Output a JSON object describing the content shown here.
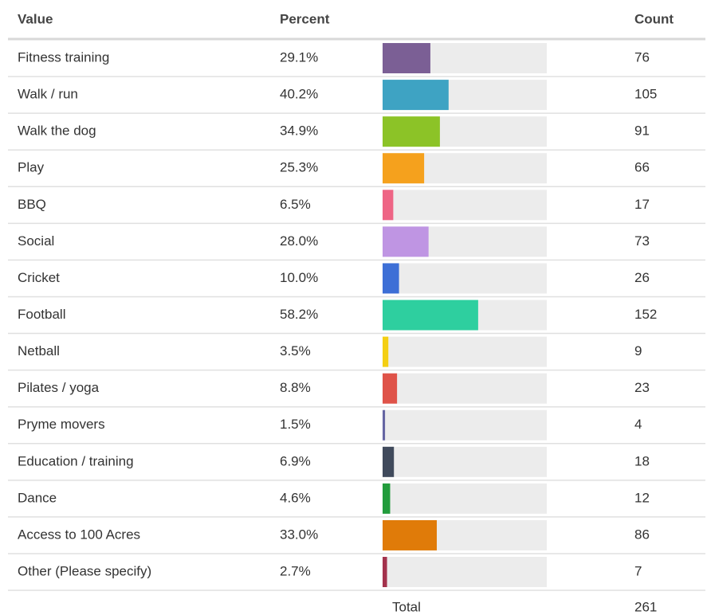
{
  "table": {
    "header": {
      "value": "Value",
      "percent": "Percent",
      "count": "Count"
    },
    "rows": [
      {
        "value": "Fitness training",
        "percent": {
          "value": 29.1,
          "label": "29.1%"
        },
        "count": 76,
        "color": "#7b5f95"
      },
      {
        "value": "Walk / run",
        "percent": {
          "value": 40.2,
          "label": "40.2%"
        },
        "count": 105,
        "color": "#3ea3c3"
      },
      {
        "value": "Walk the dog",
        "percent": {
          "value": 34.9,
          "label": "34.9%"
        },
        "count": 91,
        "color": "#8cc327"
      },
      {
        "value": "Play",
        "percent": {
          "value": 25.3,
          "label": "25.3%"
        },
        "count": 66,
        "color": "#f5a11d"
      },
      {
        "value": "BBQ",
        "percent": {
          "value": 6.5,
          "label": "6.5%"
        },
        "count": 17,
        "color": "#ee6585"
      },
      {
        "value": "Social",
        "percent": {
          "value": 28.0,
          "label": "28.0%"
        },
        "count": 73,
        "color": "#bf95e3"
      },
      {
        "value": "Cricket",
        "percent": {
          "value": 10.0,
          "label": "10.0%"
        },
        "count": 26,
        "color": "#3d6fd6"
      },
      {
        "value": "Football",
        "percent": {
          "value": 58.2,
          "label": "58.2%"
        },
        "count": 152,
        "color": "#2ecf9f"
      },
      {
        "value": "Netball",
        "percent": {
          "value": 3.5,
          "label": "3.5%"
        },
        "count": 9,
        "color": "#f4cf13"
      },
      {
        "value": "Pilates / yoga",
        "percent": {
          "value": 8.8,
          "label": "8.8%"
        },
        "count": 23,
        "color": "#df5349"
      },
      {
        "value": "Pryme movers",
        "percent": {
          "value": 1.5,
          "label": "1.5%"
        },
        "count": 4,
        "color": "#6666a3"
      },
      {
        "value": "Education / training",
        "percent": {
          "value": 6.9,
          "label": "6.9%"
        },
        "count": 18,
        "color": "#404a5c"
      },
      {
        "value": "Dance",
        "percent": {
          "value": 4.6,
          "label": "4.6%"
        },
        "count": 12,
        "color": "#229c3c"
      },
      {
        "value": "Access to 100 Acres",
        "percent": {
          "value": 33.0,
          "label": "33.0%"
        },
        "count": 86,
        "color": "#e07b09"
      },
      {
        "value": "Other (Please specify)",
        "percent": {
          "value": 2.7,
          "label": "2.7%"
        },
        "count": 7,
        "color": "#a3324c"
      }
    ],
    "total": {
      "label": "Total",
      "count": 261
    }
  }
}
